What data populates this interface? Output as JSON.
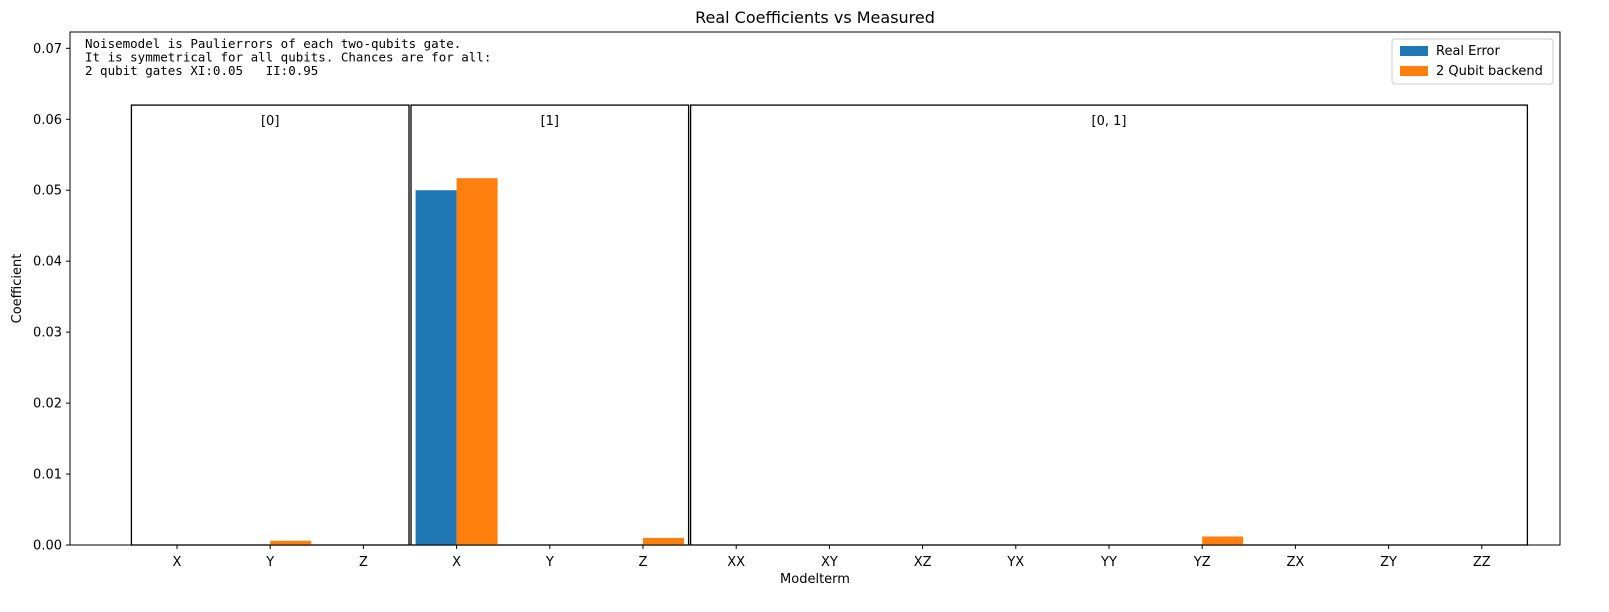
{
  "chart_data": {
    "type": "bar",
    "title": "Real Coefficients vs Measured",
    "xlabel": "Modelterm",
    "ylabel": "Coefficient",
    "ylim": [
      0,
      0.0723
    ],
    "yticks": [
      "0.00",
      "0.01",
      "0.02",
      "0.03",
      "0.04",
      "0.05",
      "0.06",
      "0.07"
    ],
    "ytick_values": [
      0,
      0.01,
      0.02,
      0.03,
      0.04,
      0.05,
      0.06,
      0.07
    ],
    "categories": [
      "X",
      "Y",
      "Z",
      "X",
      "Y",
      "Z",
      "XX",
      "XY",
      "XZ",
      "YX",
      "YY",
      "YZ",
      "ZX",
      "ZY",
      "ZZ"
    ],
    "series": [
      {
        "name": "Real Error",
        "color": "#1f77b4",
        "values": [
          0,
          0,
          0,
          0.05,
          0,
          0,
          0,
          0,
          0,
          0,
          0,
          0,
          0,
          0,
          0
        ]
      },
      {
        "name": "2 Qubit backend",
        "color": "#ff7f0e",
        "values": [
          0,
          0.0006,
          0,
          0.0517,
          0,
          0.001,
          0,
          0,
          0,
          0,
          0,
          0.0012,
          0,
          0,
          0
        ]
      }
    ],
    "groups": [
      {
        "label": "[0]",
        "start": 0,
        "end": 2
      },
      {
        "label": "[1]",
        "start": 3,
        "end": 5
      },
      {
        "label": "[0, 1]",
        "start": 6,
        "end": 14
      }
    ],
    "group_box_top": 0.062,
    "annotation_lines": [
      "Noisemodel is Paulierrors of each two-qubits gate.",
      "It is symmetrical for all qubits. Chances are for all:",
      "2 qubit gates XI:0.05   II:0.95"
    ],
    "legend_position": "top-right",
    "grid": false
  }
}
